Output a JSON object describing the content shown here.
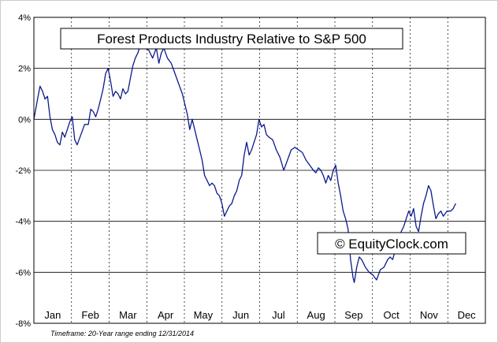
{
  "chart_data": {
    "type": "line",
    "title": "Forest Products Industry Relative to S&P 500",
    "watermark": "© EquityClock.com",
    "footnote": "Timeframe: 20-Year range ending 12/31/2014",
    "xlabel": "",
    "ylabel": "",
    "ylim": [
      -8,
      4
    ],
    "xlim": [
      0,
      365
    ],
    "y_ticks": [
      4,
      2,
      0,
      -2,
      -4,
      -6,
      -8
    ],
    "y_tick_labels": [
      "4%",
      "2%",
      "0%",
      "-2%",
      "-4%",
      "-6%",
      "-8%"
    ],
    "months": [
      "Jan",
      "Feb",
      "Mar",
      "Apr",
      "May",
      "Jun",
      "Jul",
      "Aug",
      "Sep",
      "Oct",
      "Nov",
      "Dec"
    ],
    "grid": "horizontal solid, vertical dashed at month boundaries",
    "line_color": "#0b1a8c",
    "series": [
      {
        "values": [
          [
            0,
            0.0
          ],
          [
            3,
            0.8
          ],
          [
            5,
            1.3
          ],
          [
            7,
            1.1
          ],
          [
            9,
            0.8
          ],
          [
            11,
            0.9
          ],
          [
            13,
            0.1
          ],
          [
            15,
            -0.4
          ],
          [
            17,
            -0.6
          ],
          [
            19,
            -0.9
          ],
          [
            21,
            -1.0
          ],
          [
            23,
            -0.5
          ],
          [
            25,
            -0.7
          ],
          [
            27,
            -0.4
          ],
          [
            29,
            -0.1
          ],
          [
            31,
            0.1
          ],
          [
            33,
            -0.8
          ],
          [
            35,
            -1.0
          ],
          [
            38,
            -0.6
          ],
          [
            41,
            -0.2
          ],
          [
            44,
            -0.2
          ],
          [
            46,
            0.4
          ],
          [
            48,
            0.3
          ],
          [
            50,
            0.1
          ],
          [
            52,
            0.4
          ],
          [
            54,
            0.8
          ],
          [
            56,
            1.2
          ],
          [
            58,
            1.8
          ],
          [
            60,
            2.0
          ],
          [
            62,
            1.5
          ],
          [
            64,
            0.9
          ],
          [
            66,
            1.1
          ],
          [
            68,
            1.0
          ],
          [
            70,
            0.8
          ],
          [
            72,
            1.2
          ],
          [
            74,
            1.0
          ],
          [
            76,
            1.1
          ],
          [
            78,
            1.6
          ],
          [
            80,
            2.1
          ],
          [
            82,
            2.4
          ],
          [
            84,
            2.6
          ],
          [
            86,
            2.9
          ],
          [
            88,
            2.8
          ],
          [
            90,
            2.8
          ],
          [
            93,
            2.7
          ],
          [
            96,
            2.4
          ],
          [
            99,
            2.8
          ],
          [
            101,
            2.2
          ],
          [
            103,
            2.6
          ],
          [
            105,
            2.8
          ],
          [
            108,
            2.4
          ],
          [
            111,
            2.2
          ],
          [
            114,
            1.8
          ],
          [
            117,
            1.4
          ],
          [
            120,
            1.0
          ],
          [
            122,
            0.6
          ],
          [
            124,
            0.2
          ],
          [
            126,
            -0.4
          ],
          [
            128,
            0.0
          ],
          [
            130,
            -0.4
          ],
          [
            132,
            -0.8
          ],
          [
            134,
            -1.2
          ],
          [
            136,
            -1.6
          ],
          [
            138,
            -2.2
          ],
          [
            140,
            -2.4
          ],
          [
            142,
            -2.6
          ],
          [
            144,
            -2.5
          ],
          [
            146,
            -2.6
          ],
          [
            148,
            -2.9
          ],
          [
            150,
            -3.0
          ],
          [
            152,
            -3.3
          ],
          [
            154,
            -3.8
          ],
          [
            156,
            -3.6
          ],
          [
            158,
            -3.4
          ],
          [
            160,
            -3.3
          ],
          [
            162,
            -3.0
          ],
          [
            164,
            -2.8
          ],
          [
            166,
            -2.4
          ],
          [
            168,
            -2.2
          ],
          [
            170,
            -1.4
          ],
          [
            172,
            -0.9
          ],
          [
            174,
            -1.4
          ],
          [
            176,
            -1.2
          ],
          [
            178,
            -0.9
          ],
          [
            180,
            -0.6
          ],
          [
            182,
            0.0
          ],
          [
            184,
            -0.3
          ],
          [
            186,
            -0.2
          ],
          [
            188,
            -0.6
          ],
          [
            190,
            -0.7
          ],
          [
            193,
            -0.8
          ],
          [
            196,
            -1.2
          ],
          [
            199,
            -1.5
          ],
          [
            202,
            -2.0
          ],
          [
            205,
            -1.6
          ],
          [
            208,
            -1.2
          ],
          [
            211,
            -1.1
          ],
          [
            214,
            -1.2
          ],
          [
            217,
            -1.3
          ],
          [
            220,
            -1.6
          ],
          [
            223,
            -1.8
          ],
          [
            226,
            -2.0
          ],
          [
            228,
            -2.1
          ],
          [
            230,
            -1.9
          ],
          [
            232,
            -2.0
          ],
          [
            234,
            -2.2
          ],
          [
            236,
            -2.5
          ],
          [
            238,
            -2.2
          ],
          [
            240,
            -2.4
          ],
          [
            242,
            -2.0
          ],
          [
            244,
            -1.8
          ],
          [
            246,
            -2.5
          ],
          [
            248,
            -3.0
          ],
          [
            250,
            -3.6
          ],
          [
            252,
            -3.9
          ],
          [
            254,
            -4.3
          ],
          [
            256,
            -5.5
          ],
          [
            258,
            -6.2
          ],
          [
            259,
            -6.4
          ],
          [
            261,
            -5.8
          ],
          [
            263,
            -5.4
          ],
          [
            265,
            -5.5
          ],
          [
            268,
            -5.8
          ],
          [
            271,
            -6.0
          ],
          [
            274,
            -6.1
          ],
          [
            277,
            -6.3
          ],
          [
            280,
            -5.9
          ],
          [
            283,
            -5.8
          ],
          [
            286,
            -5.5
          ],
          [
            288,
            -5.4
          ],
          [
            290,
            -5.5
          ],
          [
            293,
            -5.0
          ],
          [
            295,
            -4.7
          ],
          [
            297,
            -4.4
          ],
          [
            299,
            -4.2
          ],
          [
            301,
            -3.9
          ],
          [
            303,
            -3.6
          ],
          [
            305,
            -3.8
          ],
          [
            307,
            -3.5
          ],
          [
            309,
            -4.2
          ],
          [
            311,
            -4.4
          ],
          [
            313,
            -3.8
          ],
          [
            315,
            -3.3
          ],
          [
            317,
            -3.0
          ],
          [
            319,
            -2.6
          ],
          [
            321,
            -2.8
          ],
          [
            323,
            -3.4
          ],
          [
            325,
            -3.9
          ],
          [
            327,
            -3.7
          ],
          [
            329,
            -3.6
          ],
          [
            331,
            -3.8
          ],
          [
            334,
            -3.6
          ],
          [
            337,
            -3.6
          ],
          [
            339,
            -3.5
          ],
          [
            341,
            -3.3
          ]
        ]
      }
    ]
  }
}
